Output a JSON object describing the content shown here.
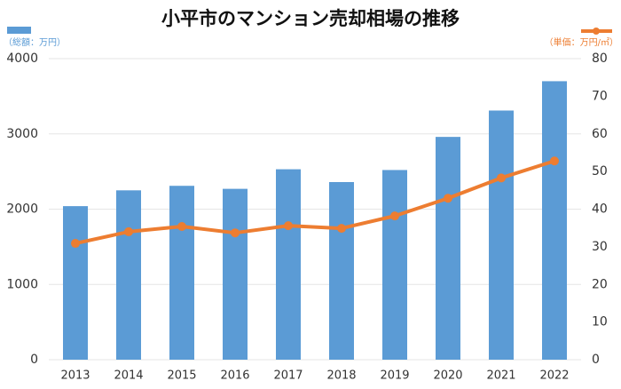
{
  "chart_data": {
    "type": "bar",
    "title": "小平市のマンション売却相場の推移",
    "categories": [
      "2013",
      "2014",
      "2015",
      "2016",
      "2017",
      "2018",
      "2019",
      "2020",
      "2021",
      "2022"
    ],
    "series": [
      {
        "name": "（総額：万円）",
        "color": "#5b9bd5",
        "values": [
          2040,
          2250,
          2310,
          2270,
          2530,
          2360,
          2520,
          2960,
          3310,
          3700
        ]
      },
      {
        "name": "（単価：万円/㎡）",
        "color": "#ed7d31",
        "type": "line",
        "axis": "y2",
        "values": [
          30.9,
          34.0,
          35.4,
          33.7,
          35.6,
          34.9,
          38.2,
          42.9,
          48.3,
          52.8
        ]
      }
    ],
    "ylim": [
      0,
      4000
    ],
    "yticks": [
      0,
      1000,
      2000,
      3000,
      4000
    ],
    "y2lim": [
      0,
      80
    ],
    "y2ticks": [
      0,
      10,
      20,
      30,
      40,
      50,
      60,
      70,
      80
    ],
    "grid": true
  }
}
